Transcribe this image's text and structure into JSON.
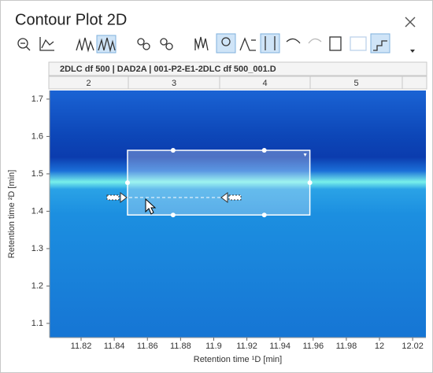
{
  "window": {
    "title": "Contour Plot 2D"
  },
  "header": {
    "label": "2DLC df 500 | DAD2A | 001-P2-E1-2DLC df 500_001.D",
    "segments": [
      "2",
      "3",
      "4",
      "5"
    ]
  },
  "chart_data": {
    "type": "contour",
    "xlabel": "Retention time ¹D [min]",
    "ylabel": "Retention time ²D [min]",
    "xlim": [
      11.801,
      12.028
    ],
    "ylim": [
      1.062,
      1.723
    ],
    "xticks": [
      11.82,
      11.84,
      11.86,
      11.88,
      11.9,
      11.92,
      11.94,
      11.96,
      11.98,
      12,
      12.02
    ],
    "yticks": [
      1.1,
      1.2,
      1.3,
      1.4,
      1.5,
      1.6,
      1.7
    ],
    "selection": {
      "x": [
        11.848,
        11.958
      ],
      "y": [
        1.39,
        1.563
      ]
    }
  }
}
